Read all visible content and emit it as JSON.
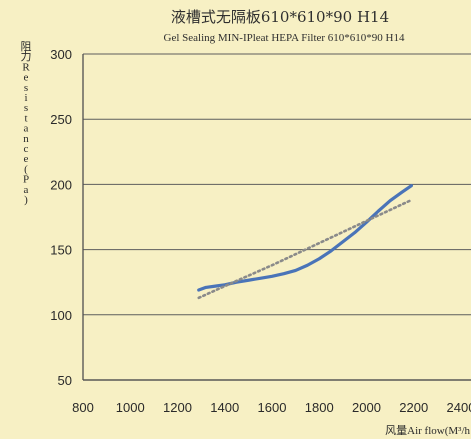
{
  "chart_data": {
    "type": "line",
    "title": "液槽式无隔板610*610*90 H14",
    "subtitle": "Gel Sealing MIN-IPleat HEPA Filter  610*610*90 H14",
    "ylabel": "阻力Resistance(Pa)",
    "xlabel": "风量Air flow(M³/h",
    "xlim": [
      800,
      2400
    ],
    "ylim": [
      50,
      300
    ],
    "x_ticks": [
      "800",
      "1000",
      "1200",
      "1400",
      "1600",
      "1800",
      "2000",
      "2200",
      "2400"
    ],
    "y_ticks": [
      "50",
      "100",
      "150",
      "200",
      "250",
      "300"
    ],
    "grid": "horizontal",
    "series": [
      {
        "style": "solid",
        "color": "#4a74b8",
        "x": [
          1290,
          1320,
          1360,
          1400,
          1450,
          1500,
          1550,
          1600,
          1650,
          1700,
          1750,
          1800,
          1850,
          1900,
          1950,
          2000,
          2050,
          2100,
          2150,
          2190
        ],
        "y": [
          119,
          121,
          122,
          123,
          125,
          126.5,
          128,
          129.5,
          131.5,
          134,
          138,
          143,
          149,
          156,
          163,
          171,
          179.5,
          187.5,
          194,
          199
        ]
      },
      {
        "style": "dotted",
        "color": "#8a8a8a",
        "x": [
          1290,
          1400,
          1600,
          1800,
          2000,
          2190
        ],
        "y": [
          113,
          122,
          138,
          155,
          172,
          188
        ]
      }
    ]
  }
}
